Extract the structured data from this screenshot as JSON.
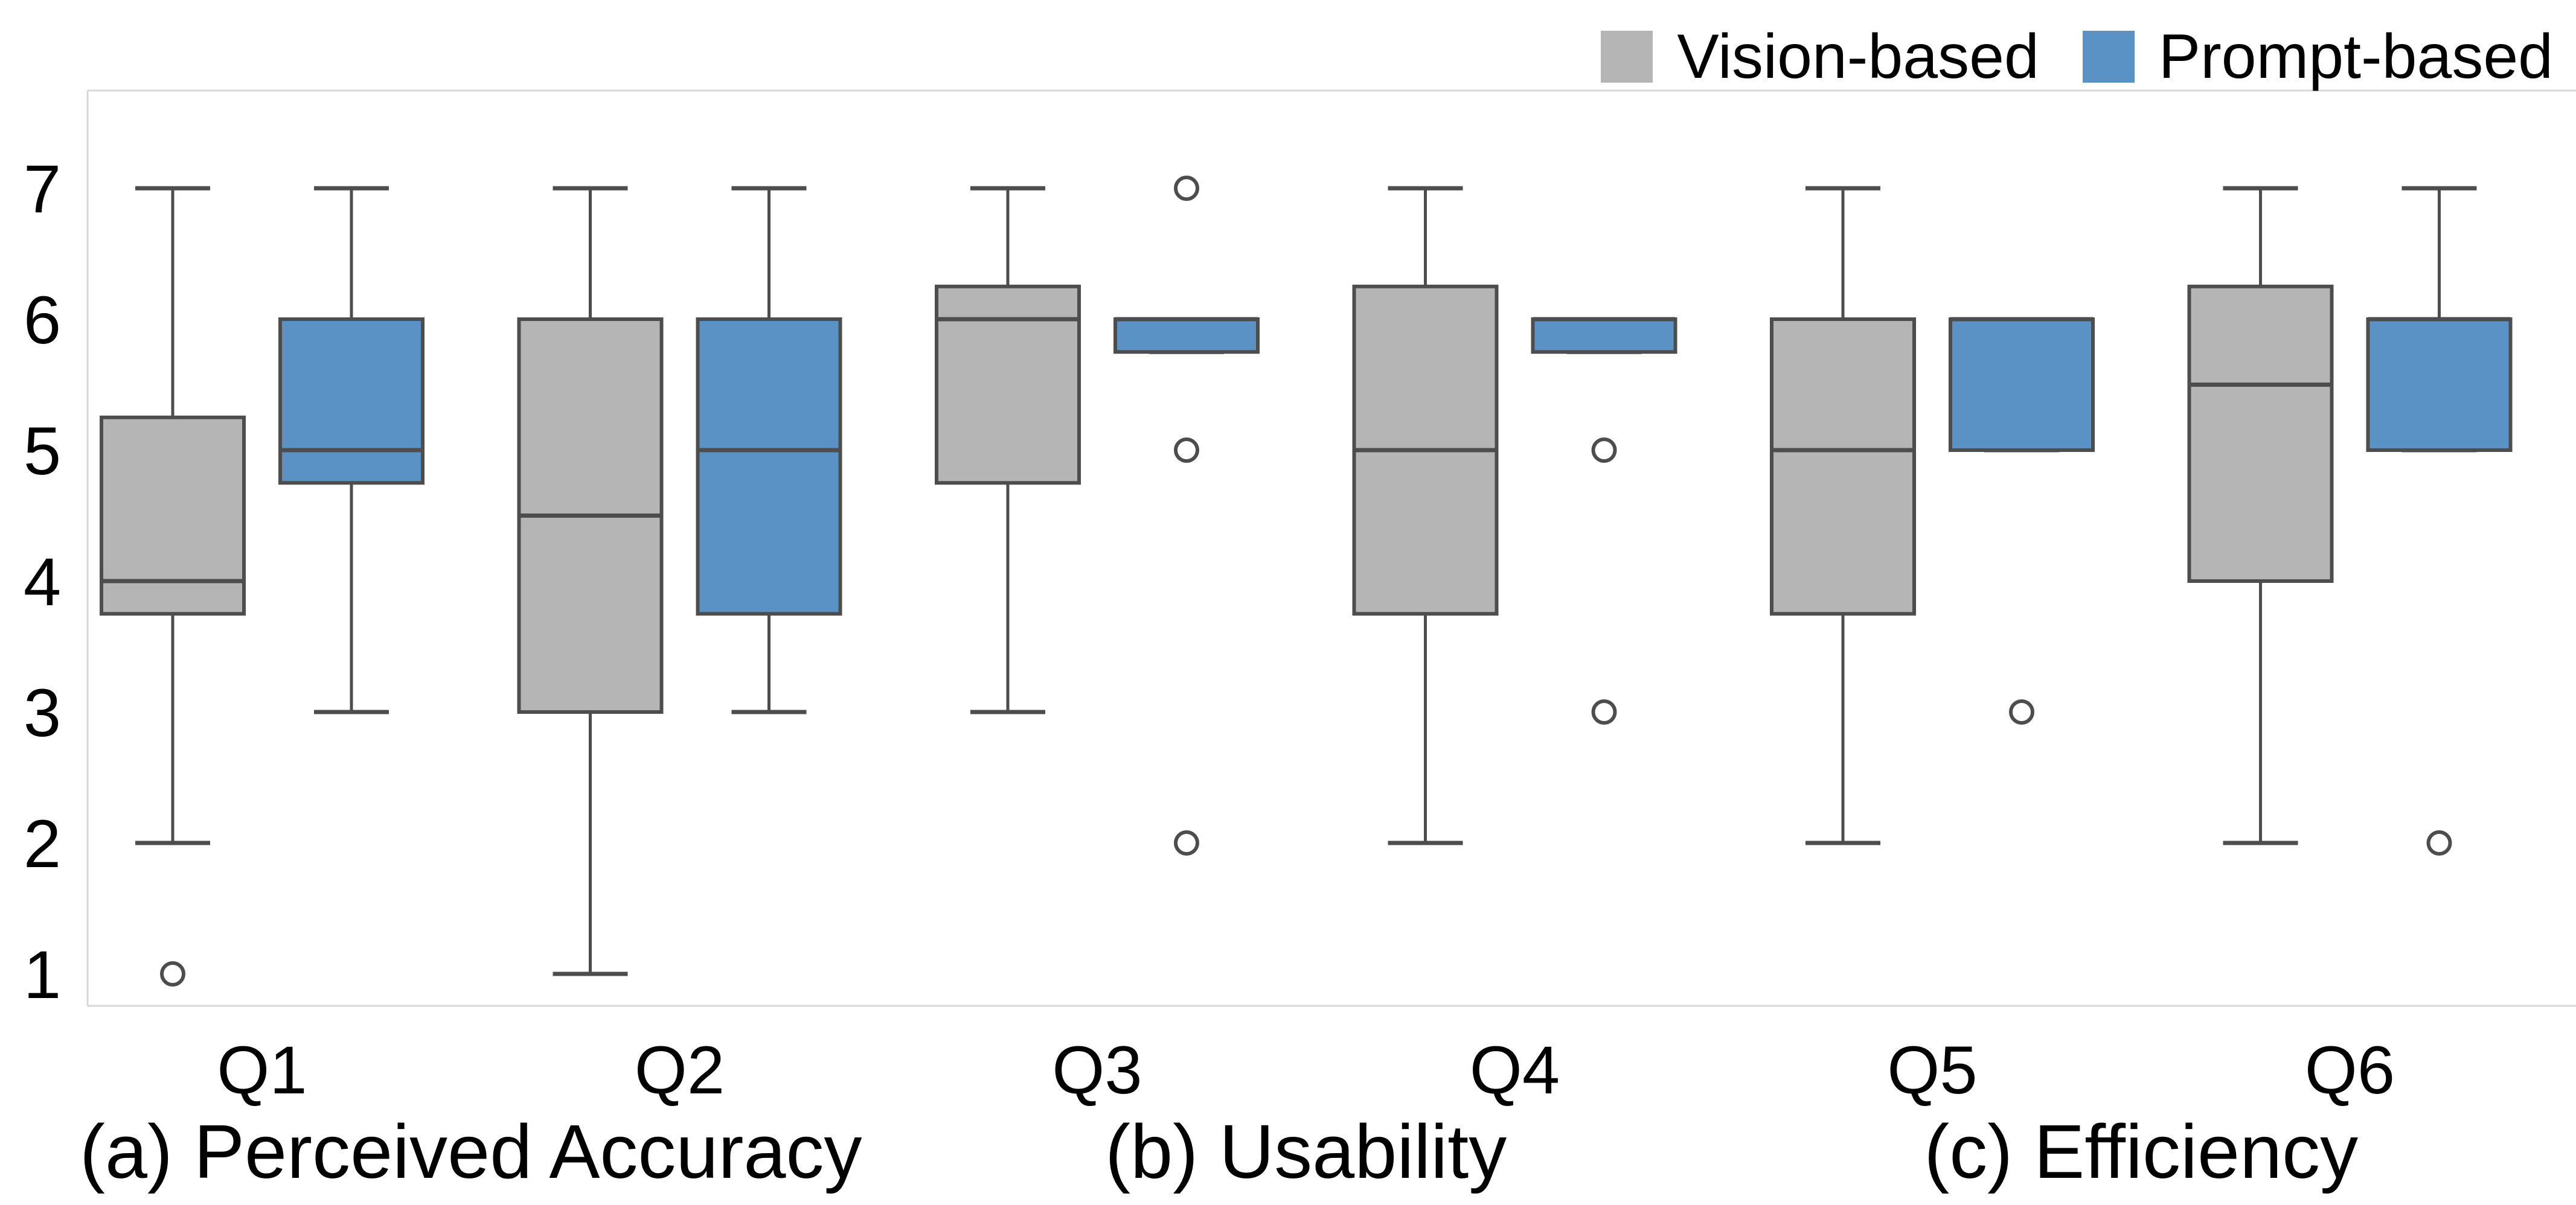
{
  "legend": {
    "items": [
      {
        "label": "Vision-based",
        "color": "#b5b5b5"
      },
      {
        "label": "Prompt-based",
        "color": "#5b92c6"
      }
    ]
  },
  "chart_data": {
    "type": "boxplot",
    "title": "",
    "xlabel": "",
    "ylabel": "",
    "ylim": [
      0.76,
      7.75
    ],
    "grid": false,
    "legend_position": "top-right",
    "y_ticks": [
      "1",
      "2",
      "3",
      "4",
      "5",
      "6",
      "7"
    ],
    "series_names": [
      "Vision-based",
      "Prompt-based"
    ],
    "colors": {
      "vision_fill": "#b5b5b5",
      "prompt_fill": "#5b92c6",
      "edge": "#4d4d4d",
      "axis_line": "#d8d8d8",
      "text": "#000000"
    },
    "sections": [
      {
        "label": "(a) Perceived Accuracy",
        "groups": [
          "Q1",
          "Q2"
        ]
      },
      {
        "label": "(b) Usability",
        "groups": [
          "Q3",
          "Q4"
        ]
      },
      {
        "label": "(c) Efficiency",
        "groups": [
          "Q5",
          "Q6"
        ]
      }
    ],
    "groups": [
      {
        "label": "Q1",
        "series": [
          {
            "name": "Vision-based",
            "whisker_low": 2,
            "q1": 3.75,
            "median": 4,
            "q3": 5.25,
            "whisker_high": 7,
            "outliers": [
              1
            ]
          },
          {
            "name": "Prompt-based",
            "whisker_low": 3,
            "q1": 4.75,
            "median": 5,
            "q3": 6,
            "whisker_high": 7,
            "outliers": []
          }
        ]
      },
      {
        "label": "Q2",
        "series": [
          {
            "name": "Vision-based",
            "whisker_low": 1,
            "q1": 3,
            "median": 4.5,
            "q3": 6,
            "whisker_high": 7,
            "outliers": []
          },
          {
            "name": "Prompt-based",
            "whisker_low": 3,
            "q1": 3.75,
            "median": 5,
            "q3": 6,
            "whisker_high": 7,
            "outliers": []
          }
        ]
      },
      {
        "label": "Q3",
        "series": [
          {
            "name": "Vision-based",
            "whisker_low": 3,
            "q1": 4.75,
            "median": 6,
            "q3": 6.25,
            "whisker_high": 7,
            "outliers": []
          },
          {
            "name": "Prompt-based",
            "whisker_low": 5.75,
            "q1": 5.75,
            "median": 6,
            "q3": 6,
            "whisker_high": 6,
            "outliers": [
              7,
              5,
              2
            ]
          }
        ]
      },
      {
        "label": "Q4",
        "series": [
          {
            "name": "Vision-based",
            "whisker_low": 2,
            "q1": 3.75,
            "median": 5,
            "q3": 6.25,
            "whisker_high": 7,
            "outliers": []
          },
          {
            "name": "Prompt-based",
            "whisker_low": 5.75,
            "q1": 5.75,
            "median": 6,
            "q3": 6,
            "whisker_high": 6,
            "outliers": [
              5,
              3
            ]
          }
        ]
      },
      {
        "label": "Q5",
        "series": [
          {
            "name": "Vision-based",
            "whisker_low": 2,
            "q1": 3.75,
            "median": 5,
            "q3": 6,
            "whisker_high": 7,
            "outliers": []
          },
          {
            "name": "Prompt-based",
            "whisker_low": 5,
            "q1": 5,
            "median": 6,
            "q3": 6,
            "whisker_high": 6,
            "outliers": [
              3
            ]
          }
        ]
      },
      {
        "label": "Q6",
        "series": [
          {
            "name": "Vision-based",
            "whisker_low": 2,
            "q1": 4,
            "median": 5.5,
            "q3": 6.25,
            "whisker_high": 7,
            "outliers": []
          },
          {
            "name": "Prompt-based",
            "whisker_low": 5,
            "q1": 5,
            "median": 6,
            "q3": 6,
            "whisker_high": 7,
            "outliers": [
              2
            ]
          }
        ]
      }
    ]
  }
}
